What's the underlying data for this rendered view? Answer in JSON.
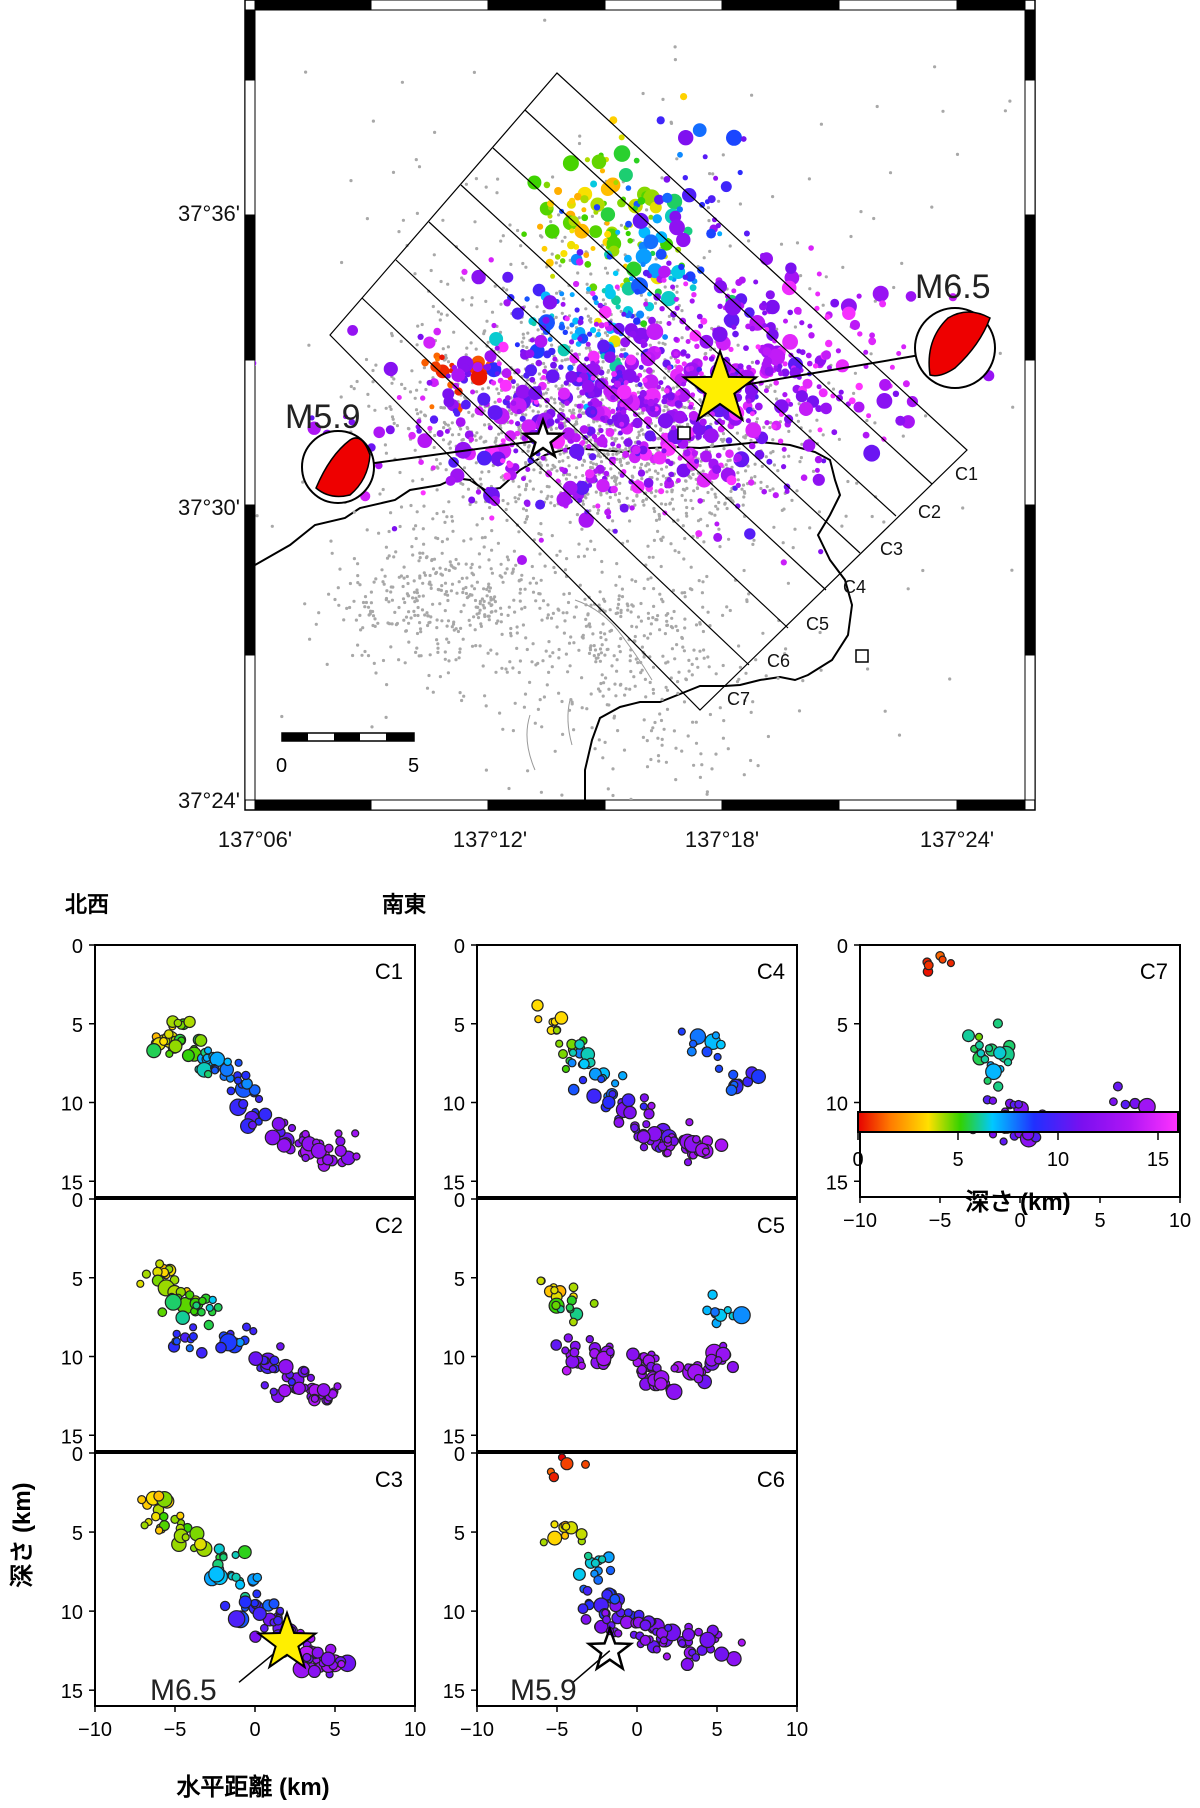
{
  "map": {
    "lat_ticks": [
      "37°36'",
      "37°30'",
      "37°24'"
    ],
    "lon_ticks": [
      "137°06'",
      "137°12'",
      "137°18'",
      "137°24'"
    ],
    "scale_bar": {
      "start_label": "0",
      "end_label": "5"
    },
    "events": [
      {
        "name": "main-shock",
        "label": "M6.5",
        "marker": "yellow-star"
      },
      {
        "name": "m59-event",
        "label": "M5.9",
        "marker": "white-star"
      }
    ],
    "cross_section_boxes": [
      "C1",
      "C2",
      "C3",
      "C4",
      "C5",
      "C6",
      "C7"
    ]
  },
  "sections": {
    "direction_left": "北西",
    "direction_right": "南東",
    "depth_axis_label": "深さ (km)",
    "distance_axis_label": "水平距離 (km)",
    "depth_ticks": [
      "0",
      "5",
      "10",
      "15"
    ],
    "distance_ticks": [
      "−10",
      "−5",
      "0",
      "5",
      "10"
    ],
    "panels": [
      {
        "id": "C1"
      },
      {
        "id": "C2"
      },
      {
        "id": "C3"
      },
      {
        "id": "C4"
      },
      {
        "id": "C5"
      },
      {
        "id": "C6"
      },
      {
        "id": "C7"
      }
    ],
    "annotations": {
      "c3_event": "M6.5",
      "c6_event": "M5.9"
    }
  },
  "colorbar": {
    "label": "深さ (km)",
    "ticks": [
      "0",
      "5",
      "10",
      "15"
    ],
    "range_km": [
      0,
      16
    ],
    "colors": [
      "#e60000",
      "#ff7a00",
      "#ffe000",
      "#33d200",
      "#00c8ff",
      "#2030ff",
      "#7a10f0",
      "#b015f5",
      "#ff33ff"
    ]
  },
  "colors": {
    "background_seismicity": "#a8a8a8",
    "main_shock_star": "#ffef00",
    "mechanism_fill": "#ee0000"
  }
}
